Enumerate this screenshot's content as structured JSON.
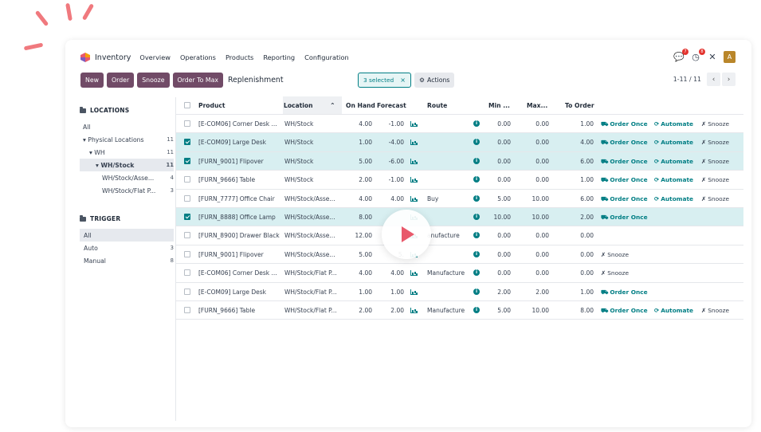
{
  "app": {
    "name": "Inventory",
    "menu": [
      "Overview",
      "Operations",
      "Products",
      "Reporting",
      "Configuration"
    ]
  },
  "nav_icons": [
    {
      "icon": "chat-icon",
      "badge": "7"
    },
    {
      "icon": "clock-icon",
      "badge": "8"
    },
    {
      "icon": "tools-icon",
      "badge": ""
    }
  ],
  "user": {
    "avatar": "A"
  },
  "toolbar": {
    "new": "New",
    "order": "Order",
    "snooze": "Snooze",
    "order_to_max": "Order To Max",
    "breadcrumb": "Replenishment"
  },
  "selection": {
    "label": "3 selected",
    "close": "×",
    "actions": "Actions"
  },
  "pager": {
    "value": "1-11 / 11",
    "prev": "‹",
    "next": "›"
  },
  "side": {
    "locations_title": "LOCATIONS",
    "locations": [
      {
        "label": "All",
        "count": "",
        "indent": 0,
        "active": false,
        "bold": false
      },
      {
        "label": "▾ Physical Locations",
        "count": "11",
        "indent": 0,
        "active": false,
        "bold": false
      },
      {
        "label": "▾ WH",
        "count": "11",
        "indent": 1,
        "active": false,
        "bold": false
      },
      {
        "label": "▾ WH/Stock",
        "count": "11",
        "indent": 2,
        "active": true,
        "bold": true
      },
      {
        "label": "WH/Stock/Asse...",
        "count": "4",
        "indent": 3,
        "active": false,
        "bold": false
      },
      {
        "label": "WH/Stock/Flat P...",
        "count": "3",
        "indent": 3,
        "active": false,
        "bold": false
      }
    ],
    "trigger_title": "TRIGGER",
    "triggers": [
      {
        "label": "All",
        "count": "",
        "active": true
      },
      {
        "label": "Auto",
        "count": "3",
        "active": false
      },
      {
        "label": "Manual",
        "count": "8",
        "active": false
      }
    ]
  },
  "table": {
    "columns": {
      "product": "Product",
      "location": "Location",
      "on_hand": "On Hand",
      "forecast": "Forecast",
      "route": "Route",
      "min": "Min ...",
      "max": "Max...",
      "to_order": "To Order"
    },
    "rows": [
      {
        "sel": false,
        "product": "[E-COM06] Corner Desk ...",
        "location": "WH/Stock",
        "on_hand": "4.00",
        "forecast": "-1.00",
        "route": "",
        "min": "0.00",
        "max": "0.00",
        "to_order": "1.00",
        "order_once": "Order Once",
        "automate": "Automate",
        "snooze": "Snooze"
      },
      {
        "sel": true,
        "product": "[E-COM09] Large Desk",
        "location": "WH/Stock",
        "on_hand": "1.00",
        "forecast": "-4.00",
        "route": "",
        "min": "0.00",
        "max": "0.00",
        "to_order": "4.00",
        "order_once": "Order Once",
        "automate": "Automate",
        "snooze": "Snooze"
      },
      {
        "sel": true,
        "product": "[FURN_9001] Flipover",
        "location": "WH/Stock",
        "on_hand": "5.00",
        "forecast": "-6.00",
        "route": "",
        "min": "0.00",
        "max": "0.00",
        "to_order": "6.00",
        "order_once": "Order Once",
        "automate": "Automate",
        "snooze": "Snooze"
      },
      {
        "sel": false,
        "product": "[FURN_9666] Table",
        "location": "WH/Stock",
        "on_hand": "2.00",
        "forecast": "-1.00",
        "route": "",
        "min": "0.00",
        "max": "0.00",
        "to_order": "1.00",
        "order_once": "Order Once",
        "automate": "Automate",
        "snooze": "Snooze"
      },
      {
        "sel": false,
        "product": "[FURN_7777] Office Chair",
        "location": "WH/Stock/Asse...",
        "on_hand": "4.00",
        "forecast": "4.00",
        "route": "Buy",
        "min": "5.00",
        "max": "10.00",
        "to_order": "6.00",
        "order_once": "Order Once",
        "automate": "Automate",
        "snooze": "Snooze"
      },
      {
        "sel": true,
        "product": "[FURN_8888] Office Lamp",
        "location": "WH/Stock/Asse...",
        "on_hand": "8.00",
        "forecast": "",
        "route": "",
        "min": "10.00",
        "max": "10.00",
        "to_order": "2.00",
        "order_once": "Order Once",
        "automate": "",
        "snooze": ""
      },
      {
        "sel": false,
        "product": "[FURN_8900] Drawer Black",
        "location": "WH/Stock/Asse...",
        "on_hand": "12.00",
        "forecast": "",
        "route": "anufacture",
        "min": "0.00",
        "max": "0.00",
        "to_order": "0.00",
        "order_once": "",
        "automate": "",
        "snooze": ""
      },
      {
        "sel": false,
        "product": "[FURN_9001] Flipover",
        "location": "WH/Stock/Asse...",
        "on_hand": "5.00",
        "forecast": "5.",
        "route": "",
        "min": "0.00",
        "max": "0.00",
        "to_order": "0.00",
        "order_once": "",
        "automate": "",
        "snooze": "Snooze"
      },
      {
        "sel": false,
        "product": "[E-COM06] Corner Desk ...",
        "location": "WH/Stock/Flat P...",
        "on_hand": "4.00",
        "forecast": "4.00",
        "route": "Manufacture",
        "min": "0.00",
        "max": "0.00",
        "to_order": "0.00",
        "order_once": "",
        "automate": "",
        "snooze": "Snooze"
      },
      {
        "sel": false,
        "product": "[E-COM09] Large Desk",
        "location": "WH/Stock/Flat P...",
        "on_hand": "1.00",
        "forecast": "1.00",
        "route": "",
        "min": "2.00",
        "max": "2.00",
        "to_order": "1.00",
        "order_once": "Order Once",
        "automate": "",
        "snooze": ""
      },
      {
        "sel": false,
        "product": "[FURN_9666] Table",
        "location": "WH/Stock/Flat P...",
        "on_hand": "2.00",
        "forecast": "2.00",
        "route": "Manufacture",
        "min": "5.00",
        "max": "10.00",
        "to_order": "8.00",
        "order_once": "Order Once",
        "automate": "Automate",
        "snooze": "Snooze"
      }
    ]
  },
  "colors": {
    "primary": "#714b67",
    "teal": "#017e84",
    "selected_row": "#d8eff1",
    "accent": "#e8596b"
  }
}
